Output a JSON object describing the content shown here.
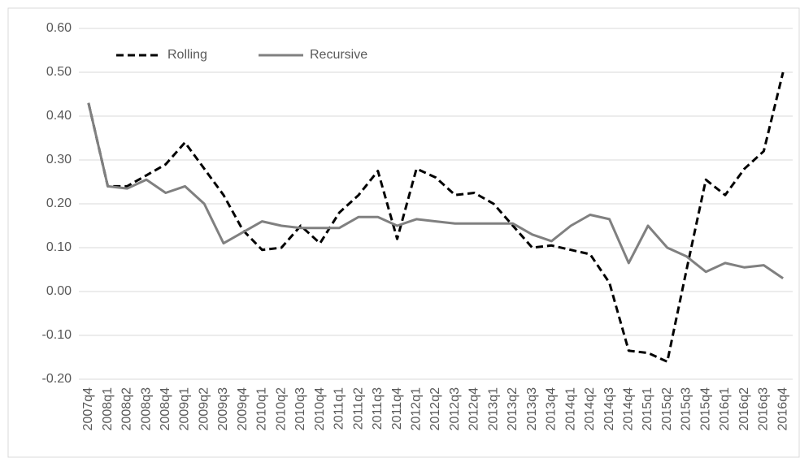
{
  "chart_data": {
    "type": "line",
    "categories": [
      "2007q4",
      "2008q1",
      "2008q2",
      "2008q3",
      "2008q4",
      "2009q1",
      "2009q2",
      "2009q3",
      "2009q4",
      "2010q1",
      "2010q2",
      "2010q3",
      "2010q4",
      "2011q1",
      "2011q2",
      "2011q3",
      "2011q4",
      "2012q1",
      "2012q2",
      "2012q3",
      "2012q4",
      "2013q1",
      "2013q2",
      "2013q3",
      "2013q4",
      "2014q1",
      "2014q2",
      "2014q3",
      "2014q4",
      "2015q1",
      "2015q2",
      "2015q3",
      "2015q4",
      "2016q1",
      "2016q2",
      "2016q3",
      "2016q4"
    ],
    "series": [
      {
        "name": "Rolling",
        "color": "#000000",
        "dashed": true,
        "values": [
          0.43,
          0.24,
          0.24,
          0.265,
          0.29,
          0.34,
          0.28,
          0.22,
          0.14,
          0.095,
          0.1,
          0.15,
          0.11,
          0.18,
          0.22,
          0.275,
          0.12,
          0.28,
          0.26,
          0.22,
          0.225,
          0.2,
          0.15,
          0.1,
          0.105,
          0.095,
          0.085,
          0.02,
          -0.135,
          -0.14,
          -0.16,
          0.05,
          0.255,
          0.22,
          0.28,
          0.32,
          0.5
        ]
      },
      {
        "name": "Recursive",
        "color": "#808080",
        "dashed": false,
        "values": [
          0.43,
          0.24,
          0.235,
          0.255,
          0.225,
          0.24,
          0.2,
          0.11,
          0.135,
          0.16,
          0.15,
          0.145,
          0.145,
          0.145,
          0.17,
          0.17,
          0.15,
          0.165,
          0.16,
          0.155,
          0.155,
          0.155,
          0.155,
          0.13,
          0.115,
          0.15,
          0.175,
          0.165,
          0.065,
          0.15,
          0.1,
          0.08,
          0.045,
          0.065,
          0.055,
          0.06,
          0.03
        ]
      }
    ],
    "ylim": [
      -0.2,
      0.6
    ],
    "yticks": [
      {
        "value": -0.2,
        "label": "-0.20"
      },
      {
        "value": -0.1,
        "label": "-0.10"
      },
      {
        "value": 0,
        "label": "0.00"
      },
      {
        "value": 0.1,
        "label": "0.10"
      },
      {
        "value": 0.2,
        "label": "0.20"
      },
      {
        "value": 0.3,
        "label": "0.30"
      },
      {
        "value": 0.4,
        "label": "0.40"
      },
      {
        "value": 0.5,
        "label": "0.50"
      },
      {
        "value": 0.6,
        "label": "0.60"
      }
    ],
    "grid": true,
    "legend": "top-left"
  }
}
